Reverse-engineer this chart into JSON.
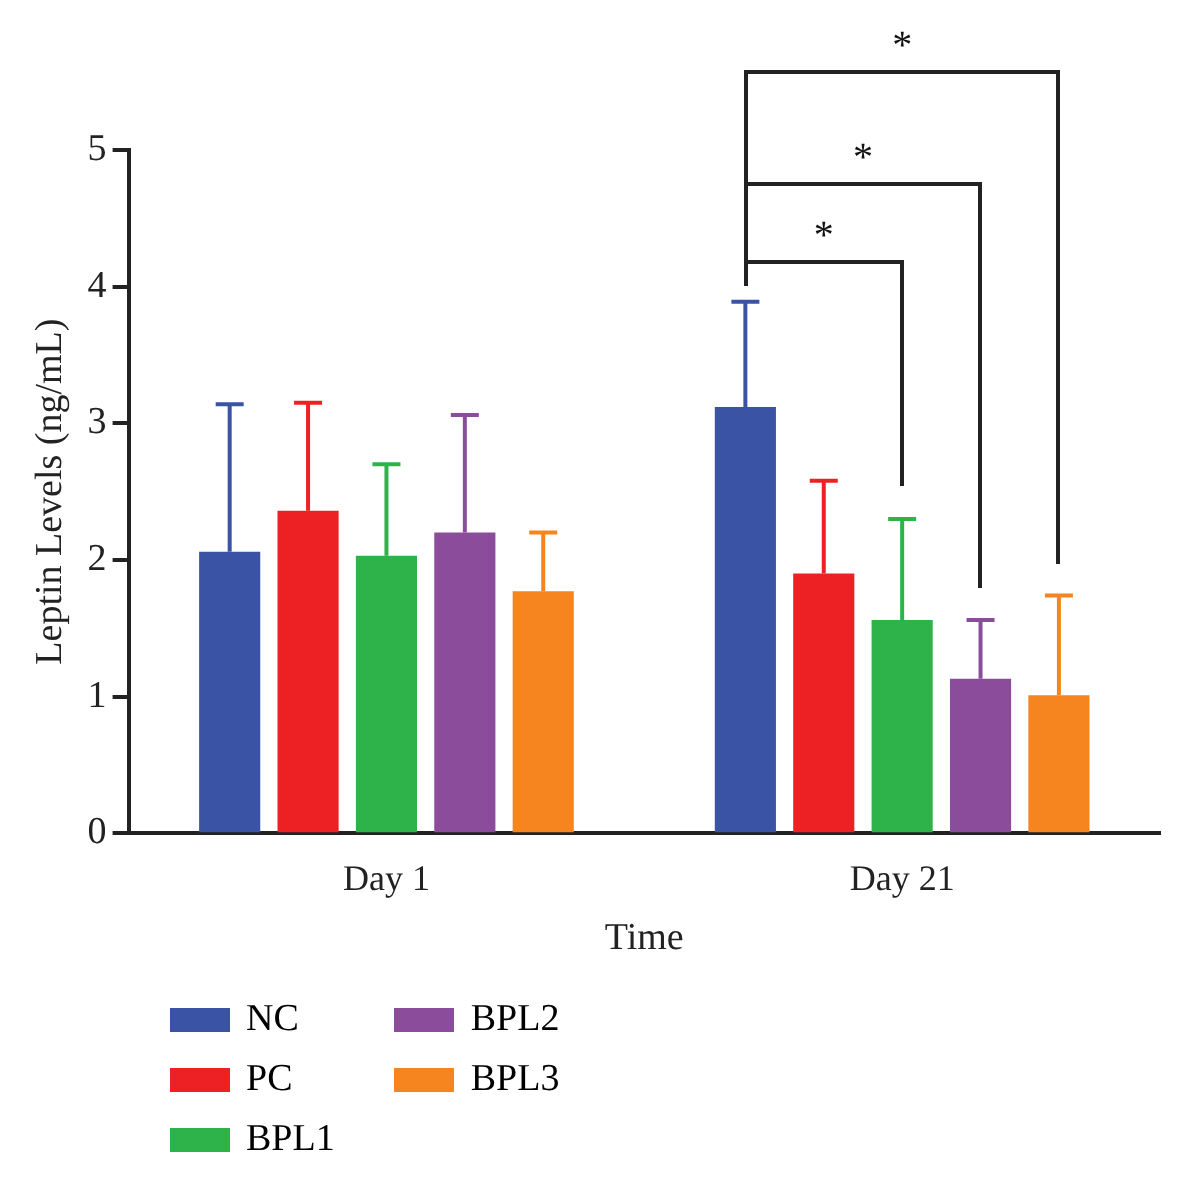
{
  "chart_data": {
    "type": "bar",
    "xlabel": "Time",
    "ylabel": "Leptin Levels (ng/mL)",
    "categories": [
      "Day 1",
      "Day 21"
    ],
    "series": [
      {
        "name": "NC",
        "color": "#3a53a4",
        "values": [
          2.06,
          3.12
        ],
        "errors": [
          [
            2.06,
            3.14
          ],
          [
            3.12,
            3.89
          ]
        ]
      },
      {
        "name": "PC",
        "color": "#ed2024",
        "values": [
          2.36,
          1.9
        ],
        "errors": [
          [
            2.36,
            3.15
          ],
          [
            1.9,
            2.58
          ]
        ]
      },
      {
        "name": "BPL1",
        "color": "#2db34a",
        "values": [
          2.03,
          1.56
        ],
        "errors": [
          [
            2.03,
            2.7
          ],
          [
            1.56,
            2.3
          ]
        ]
      },
      {
        "name": "BPL2",
        "color": "#8b4c9c",
        "values": [
          2.2,
          1.13
        ],
        "errors": [
          [
            2.2,
            3.06
          ],
          [
            1.13,
            1.56
          ]
        ]
      },
      {
        "name": "BPL3",
        "color": "#f6851f",
        "values": [
          1.77,
          1.01
        ],
        "errors": [
          [
            1.77,
            2.2
          ],
          [
            1.01,
            1.74
          ]
        ]
      }
    ],
    "ylim": [
      0,
      5
    ],
    "yticks": [
      0,
      1,
      2,
      3,
      4,
      5
    ],
    "grid": false,
    "legend": "bottom left",
    "annotations": [
      "*",
      "*",
      "*"
    ]
  }
}
